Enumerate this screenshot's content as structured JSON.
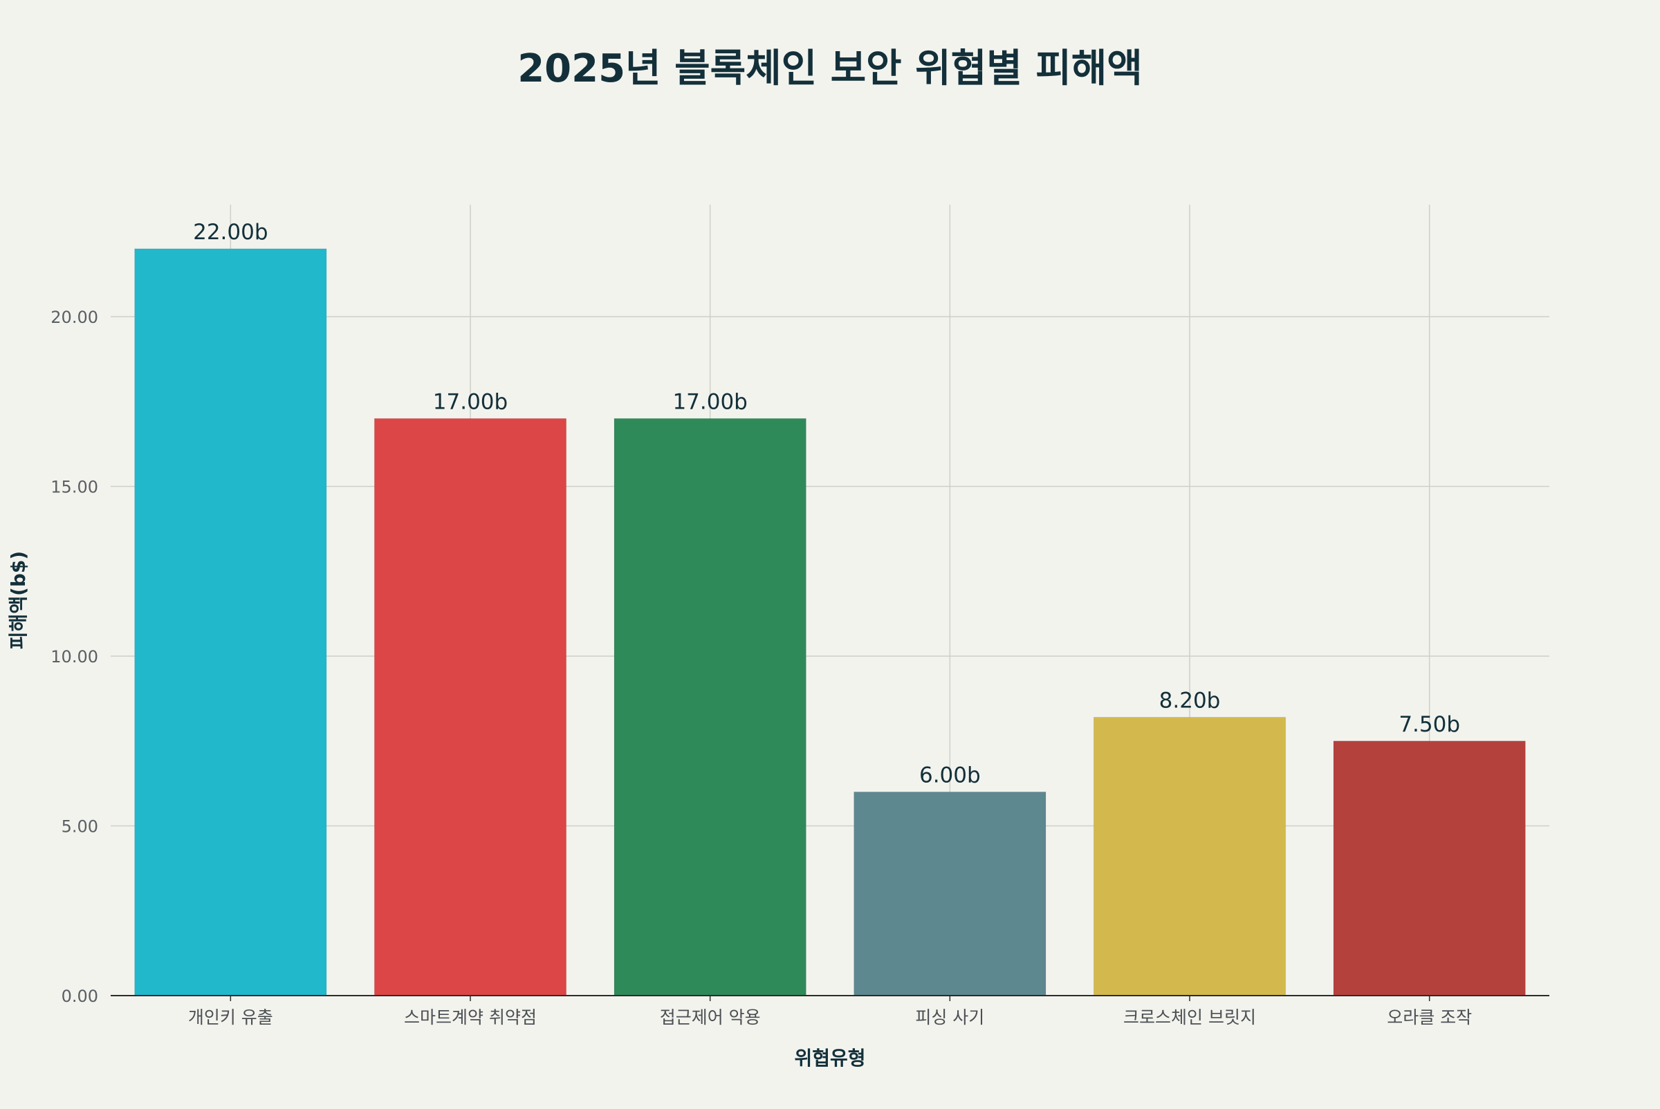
{
  "chart_data": {
    "type": "bar",
    "title": "2025년 블록체인 보안 위협별 피해액",
    "xlabel": "위협유형",
    "ylabel": "피해액(b$)",
    "categories": [
      "개인키 유출",
      "스마트계약 취약점",
      "접근제어 악용",
      "피싱 사기",
      "크로스체인 브릿지",
      "오라클 조작"
    ],
    "values": [
      22.0,
      17.0,
      17.0,
      6.0,
      8.2,
      7.5
    ],
    "value_labels": [
      "22.00b",
      "17.00b",
      "17.00b",
      "6.00b",
      "8.20b",
      "7.50b"
    ],
    "colors": [
      "#21b8cc",
      "#dc4647",
      "#2f8a5a",
      "#5e8890",
      "#d3b94d",
      "#b5413d"
    ],
    "ylim": [
      0,
      23.3
    ],
    "yticks": [
      0,
      5,
      10,
      15,
      20
    ],
    "ytick_labels": [
      "0.00",
      "5.00",
      "10.00",
      "15.00",
      "20.00"
    ],
    "grid": true,
    "legend": "none"
  }
}
